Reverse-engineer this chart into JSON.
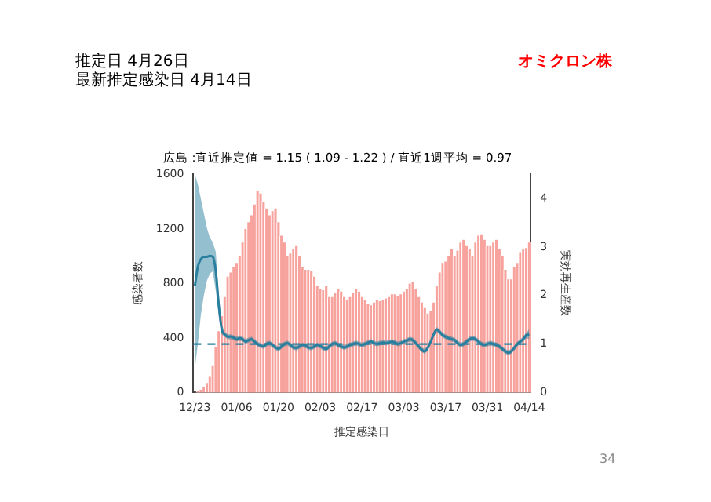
{
  "chart_data": {
    "type": "bar",
    "title": "広島 :直近推定値 = 1.15 ( 1.09 - 1.22 ) / 直近1週平均 = 0.97",
    "xlabel": "推定感染日",
    "ylabel": "感染者数",
    "y2label": "実効再生産数",
    "annotations": [
      "推定日  4月26日",
      "最新推定感染日  4月14日",
      "オミクロン株",
      "34"
    ],
    "categories": [
      "12/23",
      null,
      null,
      null,
      null,
      null,
      null,
      null,
      null,
      null,
      null,
      null,
      null,
      null,
      "01/06",
      null,
      null,
      null,
      null,
      null,
      null,
      null,
      null,
      null,
      null,
      null,
      null,
      null,
      "01/20",
      null,
      null,
      null,
      null,
      null,
      null,
      null,
      null,
      null,
      null,
      null,
      null,
      null,
      "02/03",
      null,
      null,
      null,
      null,
      null,
      null,
      null,
      null,
      null,
      null,
      null,
      null,
      null,
      "02/17",
      null,
      null,
      null,
      null,
      null,
      null,
      null,
      null,
      null,
      null,
      null,
      null,
      null,
      "03/03",
      null,
      null,
      null,
      null,
      null,
      null,
      null,
      null,
      null,
      null,
      null,
      null,
      null,
      "03/17",
      null,
      null,
      null,
      null,
      null,
      null,
      null,
      null,
      null,
      null,
      null,
      null,
      null,
      "03/31",
      null,
      null,
      null,
      null,
      null,
      null,
      null,
      null,
      null,
      null,
      null,
      null,
      null,
      "04/14"
    ],
    "series": [
      {
        "color": "#f7a29c",
        "values": [
          0,
          10,
          20,
          40,
          70,
          120,
          200,
          330,
          450,
          560,
          700,
          850,
          880,
          920,
          950,
          1000,
          1100,
          1200,
          1250,
          1300,
          1380,
          1480,
          1460,
          1400,
          1350,
          1300,
          1330,
          1350,
          1250,
          1150,
          1100,
          1000,
          1020,
          1050,
          1080,
          1000,
          920,
          900,
          900,
          890,
          850,
          780,
          760,
          750,
          780,
          700,
          700,
          730,
          760,
          740,
          700,
          680,
          700,
          730,
          760,
          740,
          700,
          680,
          650,
          640,
          660,
          680,
          670,
          680,
          690,
          700,
          720,
          720,
          710,
          720,
          740,
          760,
          800,
          810,
          760,
          700,
          660,
          620,
          580,
          600,
          660,
          780,
          880,
          950,
          960,
          1000,
          1050,
          1000,
          1040,
          1100,
          1120,
          1080,
          1050,
          1000,
          1100,
          1150,
          1160,
          1120,
          1080,
          1080,
          1100,
          1120,
          1050,
          1000,
          900,
          830,
          830,
          920,
          950,
          1030,
          1050,
          1060,
          1100
        ]
      },
      {
        "type": "line",
        "axis": "y2",
        "color": "#2a7f9e",
        "values": [
          2.2,
          2.6,
          2.75,
          2.8,
          2.8,
          2.82,
          2.8,
          2.5,
          1.8,
          1.3,
          1.2,
          1.15,
          1.15,
          1.13,
          1.1,
          1.12,
          1.1,
          1.05,
          1.08,
          1.1,
          1.05,
          1.0,
          0.97,
          0.95,
          1.0,
          1.02,
          0.98,
          0.93,
          0.9,
          0.95,
          1.0,
          1.02,
          0.98,
          0.93,
          0.92,
          0.95,
          0.98,
          0.97,
          0.93,
          0.92,
          0.95,
          0.98,
          0.96,
          0.92,
          0.9,
          0.95,
          1.0,
          1.02,
          0.98,
          0.95,
          0.93,
          0.95,
          0.98,
          1.0,
          1.02,
          1.0,
          0.98,
          1.0,
          1.03,
          1.05,
          1.02,
          1.0,
          1.02,
          1.03,
          1.02,
          1.03,
          1.05,
          1.03,
          1.0,
          1.02,
          1.05,
          1.07,
          1.1,
          1.08,
          1.02,
          0.95,
          0.88,
          0.85,
          0.92,
          1.05,
          1.2,
          1.3,
          1.25,
          1.18,
          1.15,
          1.12,
          1.1,
          1.08,
          1.02,
          0.98,
          1.0,
          1.05,
          1.1,
          1.12,
          1.1,
          1.05,
          1.0,
          0.98,
          1.0,
          1.02,
          1.0,
          0.98,
          0.95,
          0.9,
          0.85,
          0.82,
          0.85,
          0.92,
          1.0,
          1.05,
          1.1,
          1.18,
          1.2
        ],
        "lower": [
          0.5,
          1.0,
          1.6,
          2.0,
          2.3,
          2.45,
          2.5,
          2.1,
          1.6,
          1.2,
          1.15,
          1.1,
          1.1,
          1.08,
          1.05,
          1.07,
          1.05,
          1.0,
          1.03,
          1.05,
          1.0,
          0.95,
          0.92,
          0.9,
          0.95,
          0.97,
          0.93,
          0.88,
          0.85,
          0.9,
          0.95,
          0.97,
          0.93,
          0.88,
          0.87,
          0.9,
          0.93,
          0.92,
          0.88,
          0.87,
          0.9,
          0.93,
          0.91,
          0.87,
          0.85,
          0.9,
          0.95,
          0.97,
          0.93,
          0.9,
          0.88,
          0.9,
          0.93,
          0.95,
          0.97,
          0.95,
          0.93,
          0.95,
          0.98,
          1.0,
          0.97,
          0.95,
          0.97,
          0.98,
          0.97,
          0.98,
          1.0,
          0.98,
          0.95,
          0.97,
          1.0,
          1.02,
          1.05,
          1.03,
          0.97,
          0.9,
          0.83,
          0.8,
          0.87,
          1.0,
          1.15,
          1.25,
          1.2,
          1.13,
          1.1,
          1.07,
          1.05,
          1.03,
          0.97,
          0.93,
          0.95,
          1.0,
          1.05,
          1.07,
          1.05,
          1.0,
          0.95,
          0.93,
          0.95,
          0.97,
          0.95,
          0.93,
          0.9,
          0.85,
          0.8,
          0.77,
          0.8,
          0.87,
          0.95,
          1.0,
          1.05,
          1.12,
          1.1
        ],
        "upper": [
          4.5,
          4.3,
          4.0,
          3.7,
          3.4,
          3.2,
          3.1,
          2.9,
          2.0,
          1.4,
          1.25,
          1.2,
          1.2,
          1.18,
          1.15,
          1.17,
          1.15,
          1.1,
          1.13,
          1.15,
          1.1,
          1.05,
          1.02,
          1.0,
          1.05,
          1.07,
          1.03,
          0.98,
          0.95,
          1.0,
          1.05,
          1.07,
          1.03,
          0.98,
          0.97,
          1.0,
          1.03,
          1.02,
          0.98,
          0.97,
          1.0,
          1.03,
          1.01,
          0.97,
          0.95,
          1.0,
          1.05,
          1.07,
          1.03,
          1.0,
          0.98,
          1.0,
          1.03,
          1.05,
          1.07,
          1.05,
          1.03,
          1.05,
          1.08,
          1.1,
          1.07,
          1.05,
          1.07,
          1.08,
          1.07,
          1.08,
          1.1,
          1.08,
          1.05,
          1.07,
          1.1,
          1.12,
          1.15,
          1.13,
          1.07,
          1.0,
          0.93,
          0.9,
          0.97,
          1.1,
          1.25,
          1.35,
          1.3,
          1.23,
          1.2,
          1.17,
          1.15,
          1.13,
          1.07,
          1.03,
          1.05,
          1.1,
          1.15,
          1.17,
          1.15,
          1.1,
          1.05,
          1.03,
          1.05,
          1.07,
          1.05,
          1.03,
          1.0,
          0.95,
          0.9,
          0.87,
          0.9,
          0.97,
          1.05,
          1.1,
          1.15,
          1.24,
          1.3
        ]
      }
    ],
    "ylim": [
      0,
      1600
    ],
    "yticks": [
      0,
      400,
      800,
      1200,
      1600
    ],
    "y2lim": [
      0,
      4.5
    ],
    "y2ticks": [
      0,
      1,
      2,
      3,
      4
    ],
    "ref_lines": [
      {
        "axis": "y2",
        "value": 1,
        "color": "#2a7f9e",
        "line_style": "dashed"
      }
    ],
    "grid": false,
    "legend": false
  }
}
